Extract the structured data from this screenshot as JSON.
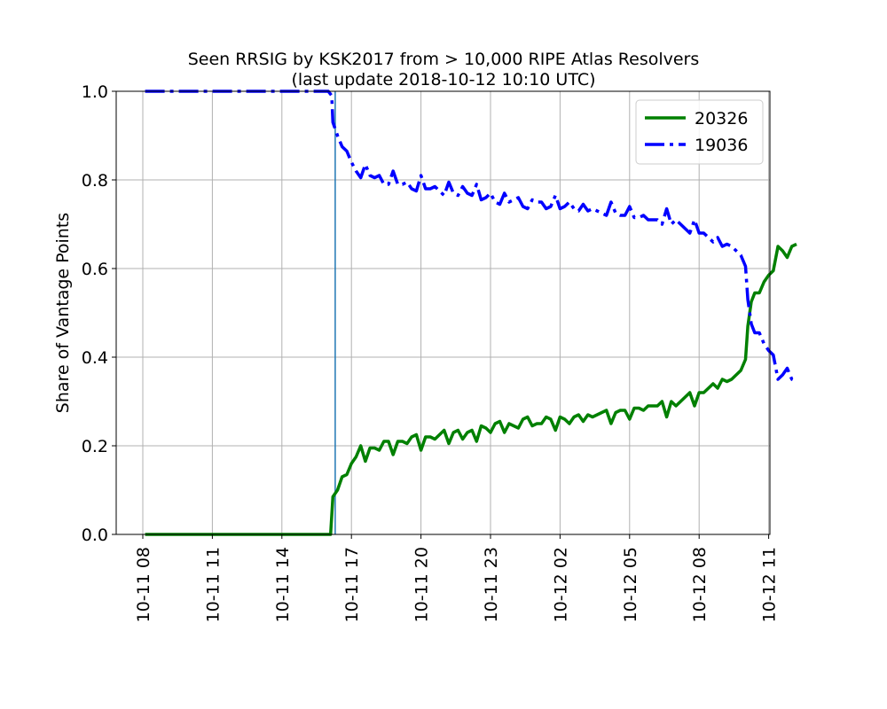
{
  "chart_data": {
    "type": "line",
    "title": "Seen RRSIG by KSK2017 from > 10,000 RIPE Atlas Resolvers",
    "subtitle": "(last update 2018-10-12 10:10 UTC)",
    "xlabel": "",
    "ylabel": "Share of Vantage Points",
    "x_unit": "hour",
    "x_ticks": [
      {
        "label": "10-11 08",
        "value": 8
      },
      {
        "label": "10-11 11",
        "value": 11
      },
      {
        "label": "10-11 14",
        "value": 14
      },
      {
        "label": "10-11 17",
        "value": 17
      },
      {
        "label": "10-11 20",
        "value": 20
      },
      {
        "label": "10-11 23",
        "value": 23
      },
      {
        "label": "10-12 02",
        "value": 26
      },
      {
        "label": "10-12 05",
        "value": 29
      },
      {
        "label": "10-12 08",
        "value": 32
      },
      {
        "label": "10-12 11",
        "value": 35
      }
    ],
    "xlim": [
      6.9,
      35.2
    ],
    "ylim": [
      0,
      1
    ],
    "y_ticks": [
      "0.0",
      "0.2",
      "0.4",
      "0.6",
      "0.8",
      "1.0"
    ],
    "grid": true,
    "legend_position": "top-right",
    "vertical_line": {
      "x": 16.3,
      "color": "#1f77b4"
    },
    "series": [
      {
        "name": "20326",
        "color": "#008000",
        "style": "solid",
        "points": [
          [
            8.1,
            0.0
          ],
          [
            9,
            0.0
          ],
          [
            10,
            0.0
          ],
          [
            11,
            0.0
          ],
          [
            12,
            0.0
          ],
          [
            13,
            0.0
          ],
          [
            14,
            0.0
          ],
          [
            15,
            0.0
          ],
          [
            16,
            0.0
          ],
          [
            16.1,
            0.0
          ],
          [
            16.2,
            0.085
          ],
          [
            16.4,
            0.1
          ],
          [
            16.6,
            0.13
          ],
          [
            16.8,
            0.135
          ],
          [
            17.0,
            0.16
          ],
          [
            17.2,
            0.175
          ],
          [
            17.4,
            0.2
          ],
          [
            17.6,
            0.165
          ],
          [
            17.8,
            0.195
          ],
          [
            18.0,
            0.195
          ],
          [
            18.2,
            0.19
          ],
          [
            18.4,
            0.21
          ],
          [
            18.6,
            0.21
          ],
          [
            18.8,
            0.18
          ],
          [
            19.0,
            0.21
          ],
          [
            19.2,
            0.21
          ],
          [
            19.4,
            0.205
          ],
          [
            19.6,
            0.22
          ],
          [
            19.8,
            0.225
          ],
          [
            20.0,
            0.19
          ],
          [
            20.2,
            0.22
          ],
          [
            20.4,
            0.22
          ],
          [
            20.6,
            0.215
          ],
          [
            20.8,
            0.225
          ],
          [
            21.0,
            0.235
          ],
          [
            21.2,
            0.205
          ],
          [
            21.4,
            0.23
          ],
          [
            21.6,
            0.235
          ],
          [
            21.8,
            0.215
          ],
          [
            22.0,
            0.23
          ],
          [
            22.2,
            0.235
          ],
          [
            22.4,
            0.21
          ],
          [
            22.6,
            0.245
          ],
          [
            22.8,
            0.24
          ],
          [
            23.0,
            0.23
          ],
          [
            23.2,
            0.25
          ],
          [
            23.4,
            0.255
          ],
          [
            23.6,
            0.23
          ],
          [
            23.8,
            0.25
          ],
          [
            24.0,
            0.245
          ],
          [
            24.2,
            0.24
          ],
          [
            24.4,
            0.26
          ],
          [
            24.6,
            0.265
          ],
          [
            24.8,
            0.245
          ],
          [
            25.0,
            0.25
          ],
          [
            25.2,
            0.25
          ],
          [
            25.4,
            0.265
          ],
          [
            25.6,
            0.26
          ],
          [
            25.8,
            0.235
          ],
          [
            26.0,
            0.265
          ],
          [
            26.2,
            0.26
          ],
          [
            26.4,
            0.25
          ],
          [
            26.6,
            0.265
          ],
          [
            26.8,
            0.27
          ],
          [
            27.0,
            0.255
          ],
          [
            27.2,
            0.27
          ],
          [
            27.4,
            0.265
          ],
          [
            27.6,
            0.27
          ],
          [
            27.8,
            0.275
          ],
          [
            28.0,
            0.28
          ],
          [
            28.2,
            0.25
          ],
          [
            28.4,
            0.275
          ],
          [
            28.6,
            0.28
          ],
          [
            28.8,
            0.28
          ],
          [
            29.0,
            0.26
          ],
          [
            29.2,
            0.285
          ],
          [
            29.4,
            0.285
          ],
          [
            29.6,
            0.28
          ],
          [
            29.8,
            0.29
          ],
          [
            30.0,
            0.29
          ],
          [
            30.2,
            0.29
          ],
          [
            30.4,
            0.3
          ],
          [
            30.6,
            0.265
          ],
          [
            30.8,
            0.3
          ],
          [
            31.0,
            0.29
          ],
          [
            31.2,
            0.3
          ],
          [
            31.4,
            0.31
          ],
          [
            31.6,
            0.32
          ],
          [
            31.8,
            0.29
          ],
          [
            32.0,
            0.32
          ],
          [
            32.2,
            0.32
          ],
          [
            32.4,
            0.33
          ],
          [
            32.6,
            0.34
          ],
          [
            32.8,
            0.33
          ],
          [
            33.0,
            0.35
          ],
          [
            33.2,
            0.345
          ],
          [
            33.4,
            0.35
          ],
          [
            33.6,
            0.36
          ],
          [
            33.8,
            0.37
          ],
          [
            34.0,
            0.395
          ],
          [
            34.1,
            0.47
          ],
          [
            34.25,
            0.525
          ],
          [
            34.4,
            0.545
          ],
          [
            34.6,
            0.545
          ],
          [
            34.8,
            0.57
          ],
          [
            35.0,
            0.585
          ],
          [
            35.2,
            0.595
          ],
          [
            35.4,
            0.65
          ],
          [
            35.6,
            0.64
          ],
          [
            35.8,
            0.625
          ],
          [
            36.0,
            0.65
          ],
          [
            36.2,
            0.655
          ]
        ]
      },
      {
        "name": "19036",
        "color": "#0000ff",
        "style": "dashdot",
        "points": [
          [
            8.1,
            1.0
          ],
          [
            9,
            1.0
          ],
          [
            10,
            1.0
          ],
          [
            11,
            1.0
          ],
          [
            12,
            1.0
          ],
          [
            13,
            1.0
          ],
          [
            14,
            1.0
          ],
          [
            15,
            1.0
          ],
          [
            16,
            1.0
          ],
          [
            16.15,
            0.99
          ],
          [
            16.2,
            0.93
          ],
          [
            16.4,
            0.9
          ],
          [
            16.6,
            0.875
          ],
          [
            16.8,
            0.865
          ],
          [
            17.0,
            0.84
          ],
          [
            17.2,
            0.82
          ],
          [
            17.4,
            0.805
          ],
          [
            17.6,
            0.835
          ],
          [
            17.8,
            0.81
          ],
          [
            18.0,
            0.805
          ],
          [
            18.2,
            0.81
          ],
          [
            18.4,
            0.79
          ],
          [
            18.6,
            0.79
          ],
          [
            18.8,
            0.82
          ],
          [
            19.0,
            0.79
          ],
          [
            19.2,
            0.79
          ],
          [
            19.4,
            0.795
          ],
          [
            19.6,
            0.78
          ],
          [
            19.8,
            0.775
          ],
          [
            20.0,
            0.81
          ],
          [
            20.2,
            0.78
          ],
          [
            20.4,
            0.78
          ],
          [
            20.6,
            0.785
          ],
          [
            20.8,
            0.775
          ],
          [
            21.0,
            0.765
          ],
          [
            21.2,
            0.795
          ],
          [
            21.4,
            0.77
          ],
          [
            21.6,
            0.765
          ],
          [
            21.8,
            0.785
          ],
          [
            22.0,
            0.77
          ],
          [
            22.2,
            0.765
          ],
          [
            22.4,
            0.79
          ],
          [
            22.6,
            0.755
          ],
          [
            22.8,
            0.76
          ],
          [
            23.0,
            0.77
          ],
          [
            23.2,
            0.75
          ],
          [
            23.4,
            0.745
          ],
          [
            23.6,
            0.77
          ],
          [
            23.8,
            0.75
          ],
          [
            24.0,
            0.755
          ],
          [
            24.2,
            0.76
          ],
          [
            24.4,
            0.74
          ],
          [
            24.6,
            0.735
          ],
          [
            24.8,
            0.755
          ],
          [
            25.0,
            0.75
          ],
          [
            25.2,
            0.75
          ],
          [
            25.4,
            0.735
          ],
          [
            25.6,
            0.74
          ],
          [
            25.8,
            0.765
          ],
          [
            26.0,
            0.735
          ],
          [
            26.2,
            0.74
          ],
          [
            26.4,
            0.75
          ],
          [
            26.6,
            0.735
          ],
          [
            26.8,
            0.73
          ],
          [
            27.0,
            0.745
          ],
          [
            27.2,
            0.73
          ],
          [
            27.4,
            0.735
          ],
          [
            27.6,
            0.73
          ],
          [
            27.8,
            0.725
          ],
          [
            28.0,
            0.72
          ],
          [
            28.2,
            0.75
          ],
          [
            28.4,
            0.725
          ],
          [
            28.6,
            0.72
          ],
          [
            28.8,
            0.72
          ],
          [
            29.0,
            0.74
          ],
          [
            29.2,
            0.715
          ],
          [
            29.4,
            0.715
          ],
          [
            29.6,
            0.72
          ],
          [
            29.8,
            0.71
          ],
          [
            30.0,
            0.71
          ],
          [
            30.2,
            0.71
          ],
          [
            30.4,
            0.7
          ],
          [
            30.6,
            0.735
          ],
          [
            30.8,
            0.7
          ],
          [
            31.0,
            0.71
          ],
          [
            31.2,
            0.7
          ],
          [
            31.4,
            0.69
          ],
          [
            31.6,
            0.68
          ],
          [
            31.8,
            0.71
          ],
          [
            32.0,
            0.68
          ],
          [
            32.2,
            0.68
          ],
          [
            32.4,
            0.67
          ],
          [
            32.6,
            0.66
          ],
          [
            32.8,
            0.67
          ],
          [
            33.0,
            0.65
          ],
          [
            33.2,
            0.655
          ],
          [
            33.4,
            0.65
          ],
          [
            33.6,
            0.64
          ],
          [
            33.8,
            0.63
          ],
          [
            34.0,
            0.605
          ],
          [
            34.1,
            0.53
          ],
          [
            34.25,
            0.475
          ],
          [
            34.4,
            0.455
          ],
          [
            34.6,
            0.455
          ],
          [
            34.8,
            0.43
          ],
          [
            35.0,
            0.415
          ],
          [
            35.2,
            0.405
          ],
          [
            35.4,
            0.35
          ],
          [
            35.6,
            0.36
          ],
          [
            35.8,
            0.375
          ],
          [
            36.0,
            0.35
          ],
          [
            36.2,
            0.345
          ]
        ]
      }
    ]
  }
}
